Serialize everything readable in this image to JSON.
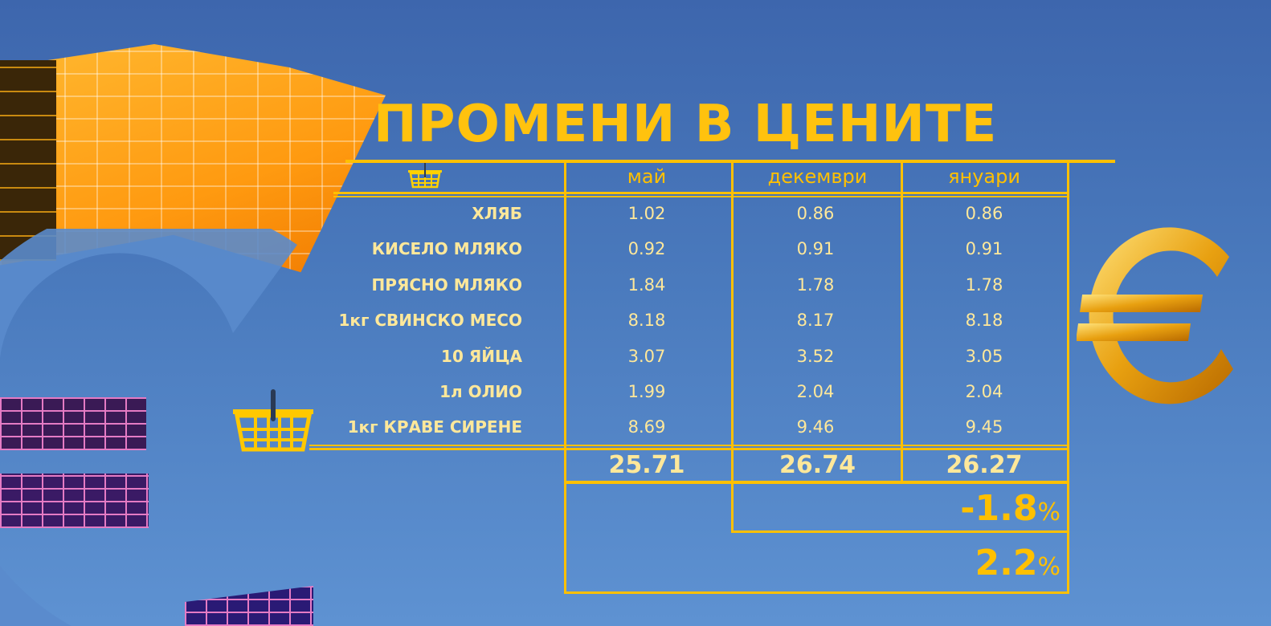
{
  "title": "ПРОМЕНИ В ЦЕНИТЕ",
  "header": {
    "icon": "basket-icon",
    "columns": [
      "май",
      "декември",
      "януари"
    ]
  },
  "rows": [
    {
      "label": "ХЛЯБ",
      "values": [
        "1.02",
        "0.86",
        "0.86"
      ]
    },
    {
      "label": "КИСЕЛО МЛЯКО",
      "values": [
        "0.92",
        "0.91",
        "0.91"
      ]
    },
    {
      "label": "ПРЯСНО МЛЯКО",
      "values": [
        "1.84",
        "1.78",
        "1.78"
      ]
    },
    {
      "label": "1кг СВИНСКО МЕСО",
      "values": [
        "8.18",
        "8.17",
        "8.18"
      ]
    },
    {
      "label": "10 ЯЙЦА",
      "values": [
        "3.07",
        "3.52",
        "3.05"
      ]
    },
    {
      "label": "1л ОЛИО",
      "values": [
        "1.99",
        "2.04",
        "2.04"
      ]
    },
    {
      "label": "1кг КРАВЕ СИРЕНЕ",
      "values": [
        "8.69",
        "9.46",
        "9.45"
      ]
    }
  ],
  "totals": [
    "25.71",
    "26.74",
    "26.27"
  ],
  "change_dec_jan": {
    "value": "-1.8",
    "unit": "%"
  },
  "change_may_jan": {
    "value": "2.2",
    "unit": "%"
  },
  "colors": {
    "accent": "#ffc000",
    "text": "#ffe89a",
    "background": "#4a7abd"
  }
}
